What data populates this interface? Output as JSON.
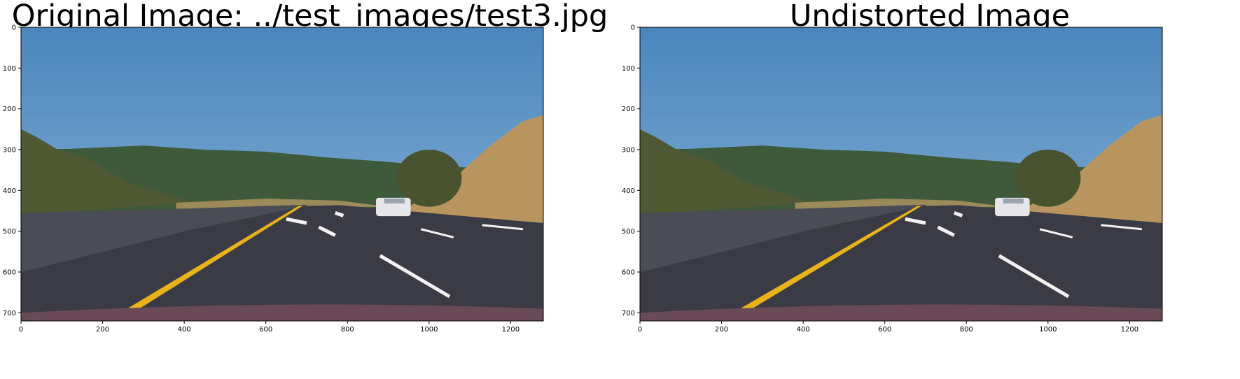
{
  "panels": [
    {
      "title": "Original Image: ../test_images/test3.jpg",
      "x_ticks": [
        0,
        200,
        400,
        600,
        800,
        1000,
        1200
      ],
      "y_ticks": [
        0,
        100,
        200,
        300,
        400,
        500,
        600,
        700
      ],
      "xlim": [
        0,
        1280
      ],
      "ylim": [
        720,
        0
      ]
    },
    {
      "title": "Undistorted Image",
      "x_ticks": [
        0,
        200,
        400,
        600,
        800,
        1000,
        1200
      ],
      "y_ticks": [
        0,
        100,
        200,
        300,
        400,
        500,
        600,
        700
      ],
      "xlim": [
        0,
        1280
      ],
      "ylim": [
        720,
        0
      ]
    }
  ],
  "scene": {
    "description_colors": {
      "sky_top": "#4a86bd",
      "sky_bottom": "#8fb6d8",
      "hills_far": "#3f5a3a",
      "grass_dry": "#b8955e",
      "road": "#3b3b45",
      "yellow_line": "#e8b21a",
      "white_line": "#f2f2f2",
      "car": "#e6e6ea",
      "hood": "#6a4a56"
    }
  }
}
